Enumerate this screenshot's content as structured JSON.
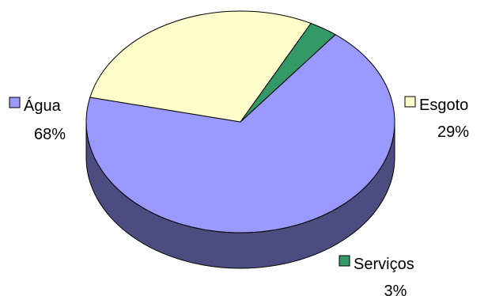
{
  "chart_data": {
    "type": "pie",
    "title": "",
    "style": "3d",
    "slices": [
      {
        "label": "Água",
        "value": 68,
        "percent_label": "68%",
        "color": "#9999ff",
        "side_color": "#4c4c80"
      },
      {
        "label": "Esgoto",
        "value": 29,
        "percent_label": "29%",
        "color": "#ffffcc",
        "side_color": "#808066"
      },
      {
        "label": "Serviços",
        "value": 3,
        "percent_label": "3%",
        "color": "#339966",
        "side_color": "#1a4d33"
      }
    ]
  }
}
